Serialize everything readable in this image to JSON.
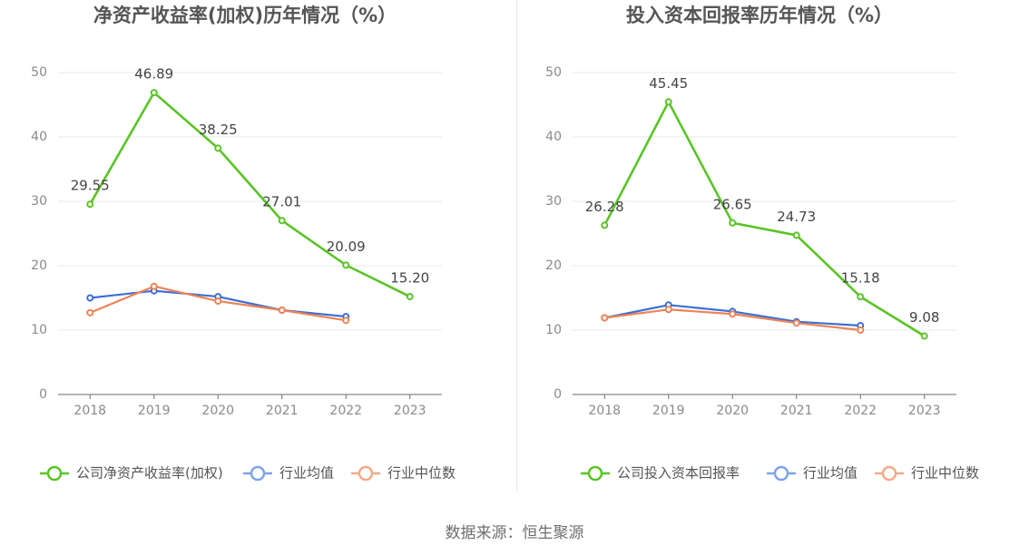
{
  "chart_data": [
    {
      "type": "line",
      "title": "净资产收益率(加权)历年情况（%）",
      "categories": [
        "2018",
        "2019",
        "2020",
        "2021",
        "2022",
        "2023"
      ],
      "ylim": [
        0,
        50
      ],
      "yticks": [
        0,
        10,
        20,
        30,
        40,
        50
      ],
      "series": [
        {
          "name": "公司净资产收益率(加权)",
          "color": "#5ac426",
          "values": [
            29.55,
            46.89,
            38.25,
            27.01,
            20.09,
            15.2
          ],
          "labels": [
            "29.55",
            "46.89",
            "38.25",
            "27.01",
            "20.09",
            "15.20"
          ]
        },
        {
          "name": "行业均值",
          "color": "#3b6fd4",
          "legend_color": "#7fa3ea",
          "values": [
            15.0,
            16.1,
            15.2,
            13.1,
            12.1,
            null
          ]
        },
        {
          "name": "行业中位数",
          "color": "#ee8355",
          "legend_color": "#f5a98a",
          "values": [
            12.7,
            16.8,
            14.5,
            13.1,
            11.5,
            null
          ]
        }
      ]
    },
    {
      "type": "line",
      "title": "投入资本回报率历年情况（%）",
      "categories": [
        "2018",
        "2019",
        "2020",
        "2021",
        "2022",
        "2023"
      ],
      "ylim": [
        0,
        50
      ],
      "yticks": [
        0,
        10,
        20,
        30,
        40,
        50
      ],
      "series": [
        {
          "name": "公司投入资本回报率",
          "color": "#5ac426",
          "values": [
            26.28,
            45.45,
            26.65,
            24.73,
            15.18,
            9.08
          ],
          "labels": [
            "26.28",
            "45.45",
            "26.65",
            "24.73",
            "15.18",
            "9.08"
          ]
        },
        {
          "name": "行业均值",
          "color": "#3b6fd4",
          "legend_color": "#7fa3ea",
          "values": [
            11.9,
            13.9,
            12.9,
            11.3,
            10.7,
            null
          ]
        },
        {
          "name": "行业中位数",
          "color": "#ee8355",
          "legend_color": "#f5a98a",
          "values": [
            11.9,
            13.2,
            12.5,
            11.1,
            10.0,
            null
          ]
        }
      ]
    }
  ],
  "source": "数据来源：恒生聚源"
}
